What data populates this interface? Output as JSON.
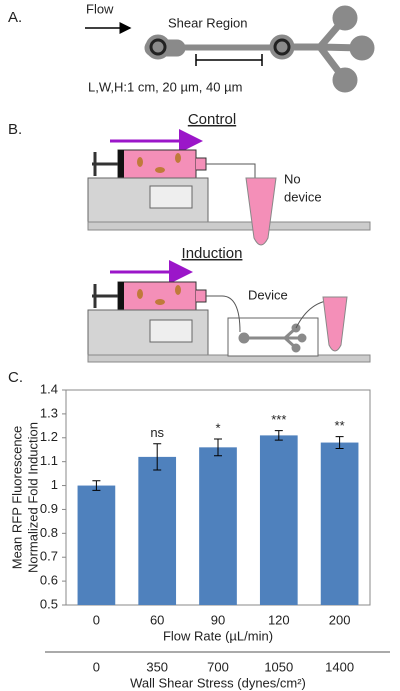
{
  "panel_a": {
    "label": "A.",
    "flow": "Flow",
    "region": "Shear Region",
    "dims": "L,W,H:1 cm, 20 µm, 40 µm"
  },
  "panel_b": {
    "label": "B.",
    "control": "Control",
    "no_device": [
      "No",
      "device"
    ],
    "induction": "Induction",
    "device": "Device"
  },
  "panel_c": {
    "label": "C."
  },
  "chart_data": {
    "type": "bar",
    "ylabel": [
      "Mean RFP Fluorescence",
      "Normalized Fold Induction"
    ],
    "xlabel": "Flow Rate (µL/min)",
    "categories": [
      "0",
      "60",
      "90",
      "120",
      "200"
    ],
    "values": [
      1.0,
      1.12,
      1.16,
      1.21,
      1.18
    ],
    "errors": [
      0.02,
      0.055,
      0.035,
      0.02,
      0.025
    ],
    "significance": [
      null,
      "ns",
      "*",
      "***",
      "**"
    ],
    "x2label": "Wall Shear Stress (dynes/cm²)",
    "x2_categories": [
      "0",
      "350",
      "700",
      "1050",
      "1400"
    ],
    "color": "#4f81bd",
    "ylim": [
      0.5,
      1.4
    ],
    "yticks": [
      0.5,
      0.6,
      0.7,
      0.8,
      0.9,
      1,
      1.1,
      1.2,
      1.3,
      1.4
    ]
  }
}
